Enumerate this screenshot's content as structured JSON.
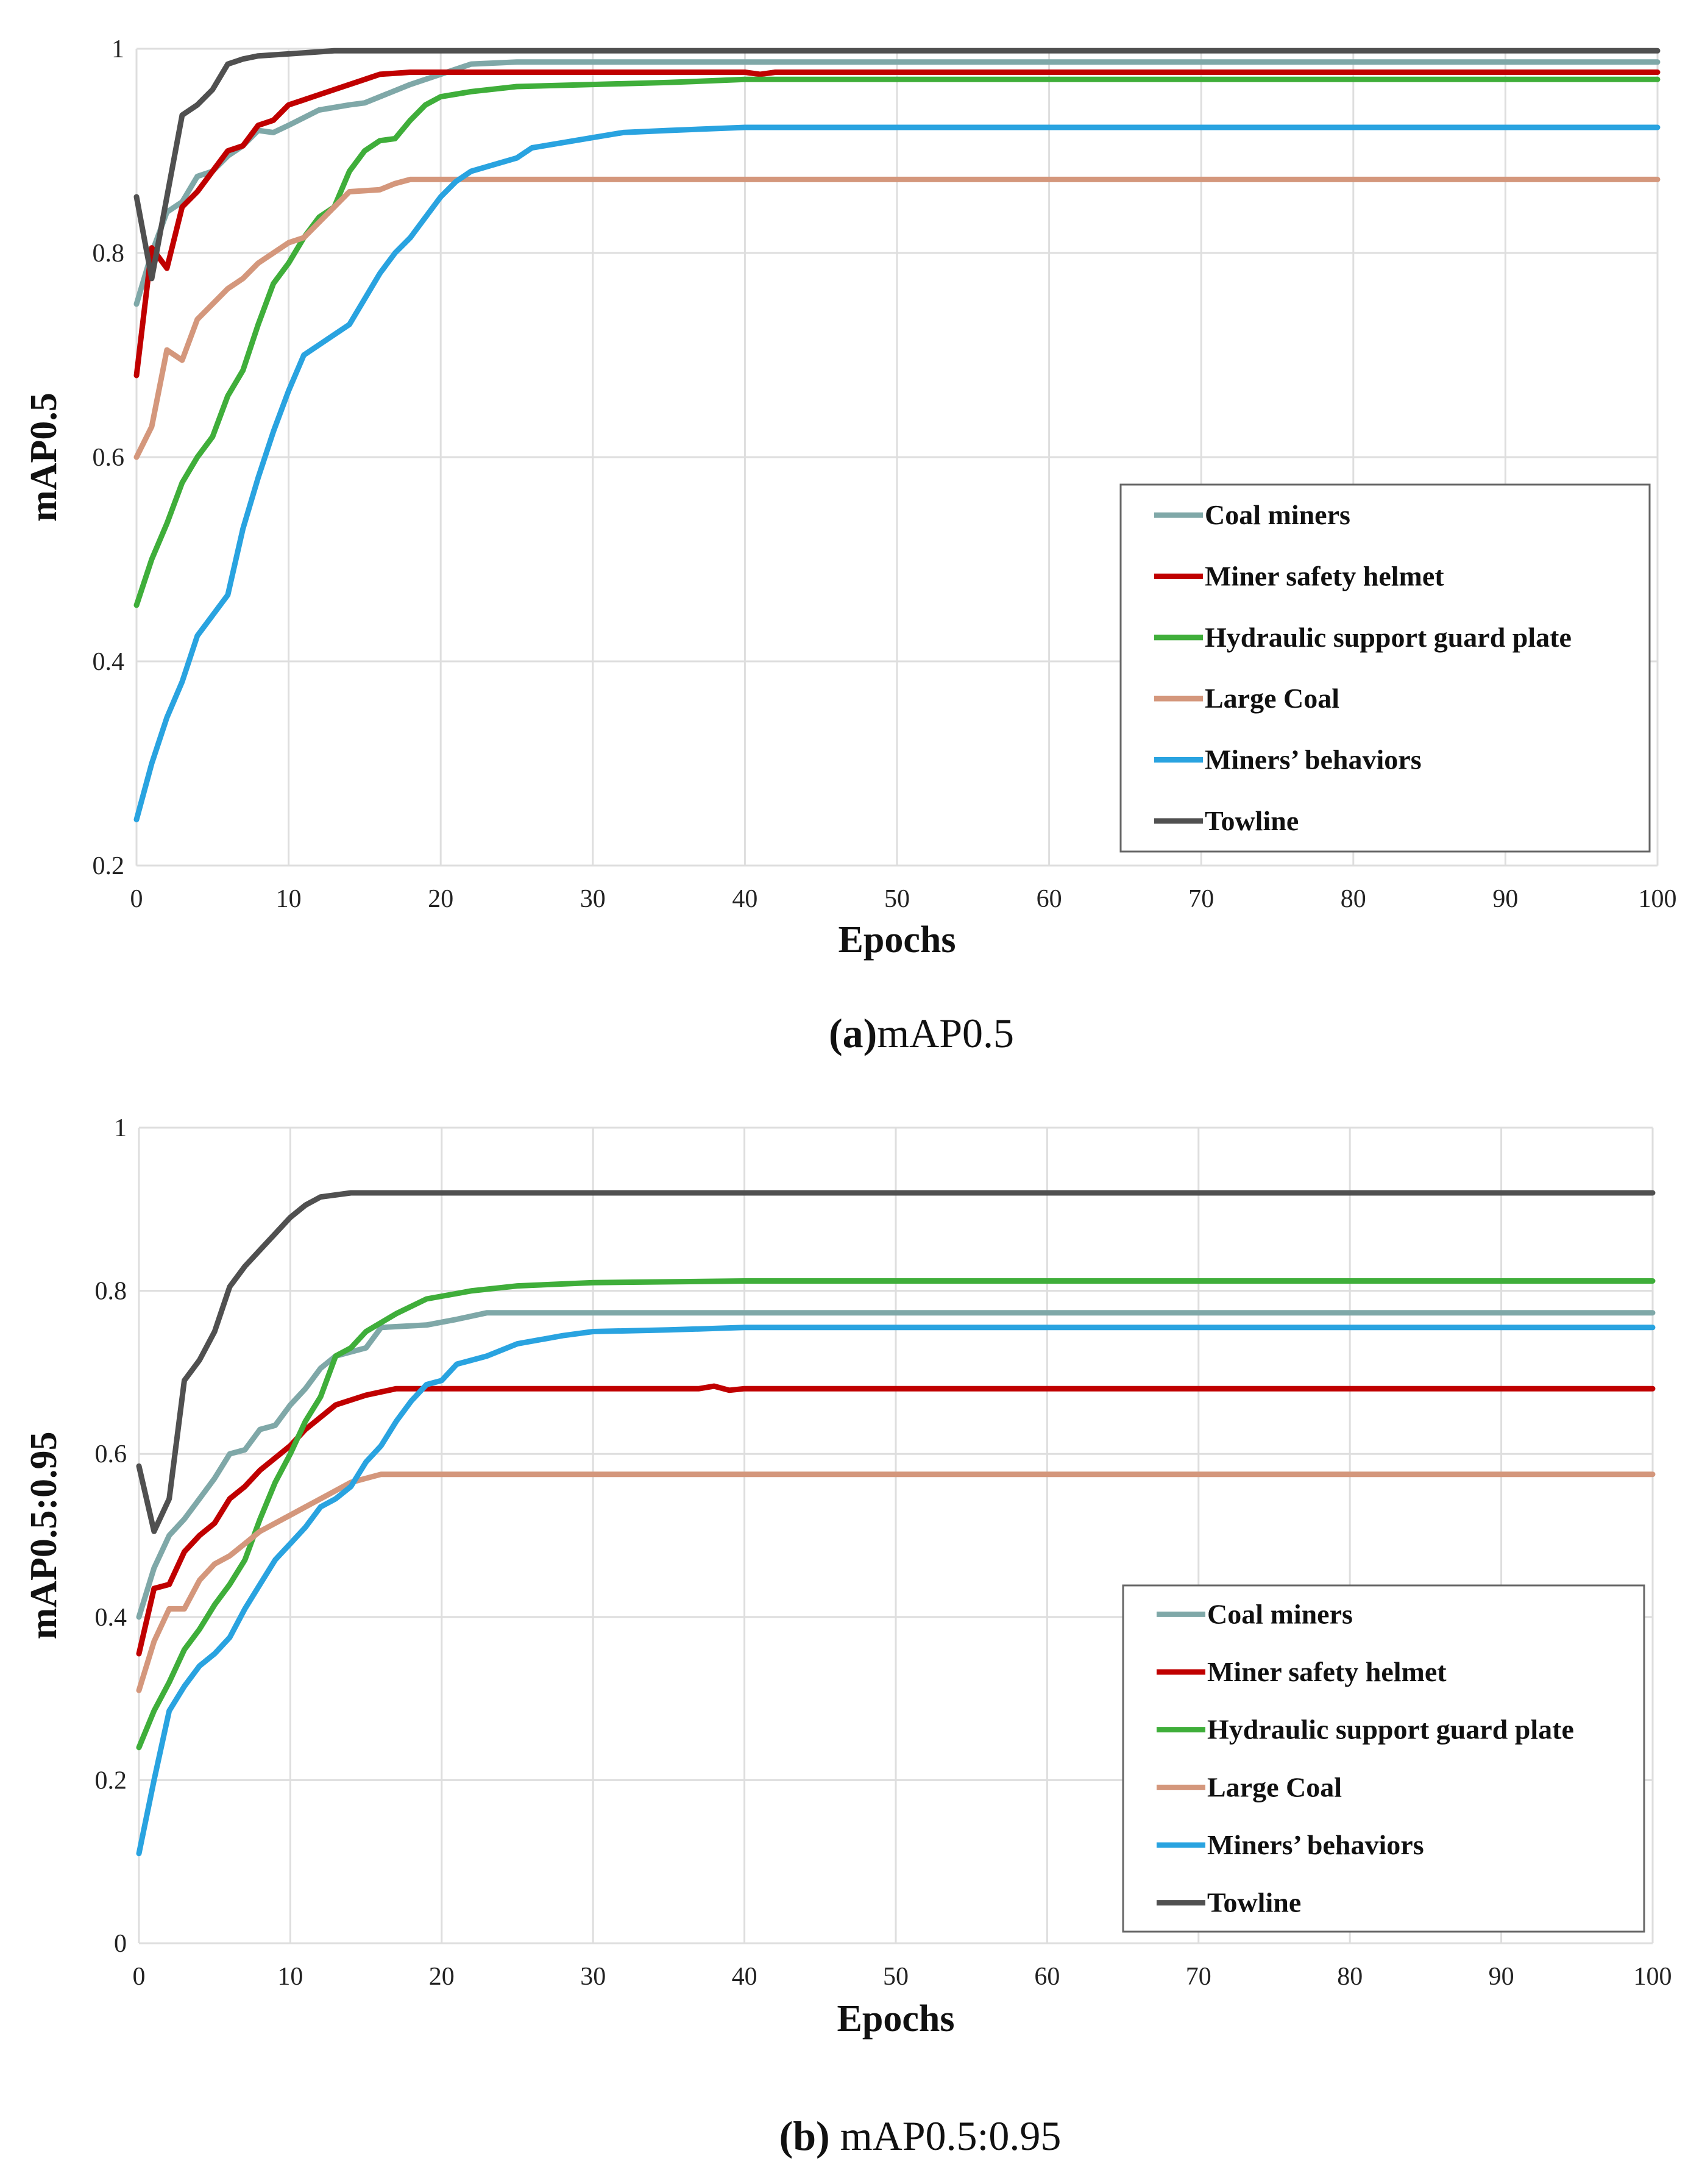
{
  "colors": {
    "Coal miners": "#7fa8a8",
    "Miner safety helmet": "#c00000",
    "Hydraulic support guard plate": "#3fae3a",
    "Large Coal": "#d4977c",
    "Miners’ behaviors": "#29a3e0",
    "Towline": "#505050"
  },
  "chart_data": [
    {
      "type": "line",
      "caption_label": "(a)",
      "caption_text": "mAP0.5",
      "xlabel": "Epochs",
      "ylabel": "mAP0.5",
      "xlim": [
        0,
        100
      ],
      "ylim": [
        0.2,
        1
      ],
      "xticks": [
        "0",
        "10",
        "20",
        "30",
        "40",
        "50",
        "60",
        "70",
        "80",
        "90",
        "100"
      ],
      "yticks": [
        "0.2",
        "0.4",
        "0.6",
        "0.8",
        "1"
      ],
      "grid": true,
      "legend": "bottom-right",
      "series": [
        {
          "name": "Coal miners",
          "points": [
            [
              0,
              0.75
            ],
            [
              1,
              0.8
            ],
            [
              2,
              0.84
            ],
            [
              3,
              0.85
            ],
            [
              4,
              0.875
            ],
            [
              5,
              0.88
            ],
            [
              6,
              0.895
            ],
            [
              7,
              0.905
            ],
            [
              8,
              0.92
            ],
            [
              9,
              0.918
            ],
            [
              10,
              0.925
            ],
            [
              12,
              0.94
            ],
            [
              14,
              0.945
            ],
            [
              15,
              0.947
            ],
            [
              18,
              0.965
            ],
            [
              22,
              0.985
            ],
            [
              25,
              0.987
            ],
            [
              100,
              0.987
            ]
          ]
        },
        {
          "name": "Miner safety helmet",
          "points": [
            [
              0,
              0.68
            ],
            [
              1,
              0.805
            ],
            [
              2,
              0.785
            ],
            [
              3,
              0.845
            ],
            [
              4,
              0.86
            ],
            [
              5,
              0.88
            ],
            [
              6,
              0.9
            ],
            [
              7,
              0.905
            ],
            [
              8,
              0.925
            ],
            [
              9,
              0.93
            ],
            [
              10,
              0.945
            ],
            [
              11,
              0.95
            ],
            [
              13,
              0.96
            ],
            [
              15,
              0.97
            ],
            [
              16,
              0.975
            ],
            [
              18,
              0.977
            ],
            [
              40,
              0.977
            ],
            [
              41,
              0.975
            ],
            [
              42,
              0.977
            ],
            [
              100,
              0.977
            ]
          ]
        },
        {
          "name": "Hydraulic support guard plate",
          "points": [
            [
              0,
              0.455
            ],
            [
              1,
              0.5
            ],
            [
              2,
              0.535
            ],
            [
              3,
              0.575
            ],
            [
              4,
              0.6
            ],
            [
              5,
              0.62
            ],
            [
              6,
              0.66
            ],
            [
              7,
              0.685
            ],
            [
              8,
              0.73
            ],
            [
              9,
              0.77
            ],
            [
              10,
              0.79
            ],
            [
              11,
              0.815
            ],
            [
              12,
              0.835
            ],
            [
              13,
              0.845
            ],
            [
              14,
              0.88
            ],
            [
              15,
              0.9
            ],
            [
              16,
              0.91
            ],
            [
              17,
              0.912
            ],
            [
              18,
              0.93
            ],
            [
              19,
              0.945
            ],
            [
              20,
              0.953
            ],
            [
              22,
              0.958
            ],
            [
              25,
              0.963
            ],
            [
              30,
              0.965
            ],
            [
              35,
              0.967
            ],
            [
              40,
              0.97
            ],
            [
              100,
              0.97
            ]
          ]
        },
        {
          "name": "Large Coal",
          "points": [
            [
              0,
              0.6
            ],
            [
              1,
              0.63
            ],
            [
              2,
              0.705
            ],
            [
              3,
              0.695
            ],
            [
              4,
              0.735
            ],
            [
              5,
              0.75
            ],
            [
              6,
              0.765
            ],
            [
              7,
              0.775
            ],
            [
              8,
              0.79
            ],
            [
              9,
              0.8
            ],
            [
              10,
              0.81
            ],
            [
              11,
              0.815
            ],
            [
              12,
              0.83
            ],
            [
              13,
              0.845
            ],
            [
              14,
              0.86
            ],
            [
              16,
              0.862
            ],
            [
              17,
              0.868
            ],
            [
              18,
              0.872
            ],
            [
              100,
              0.872
            ]
          ]
        },
        {
          "name": "Miners’ behaviors",
          "points": [
            [
              0,
              0.245
            ],
            [
              1,
              0.3
            ],
            [
              2,
              0.345
            ],
            [
              3,
              0.38
            ],
            [
              4,
              0.425
            ],
            [
              5,
              0.445
            ],
            [
              6,
              0.465
            ],
            [
              7,
              0.53
            ],
            [
              8,
              0.58
            ],
            [
              9,
              0.625
            ],
            [
              10,
              0.665
            ],
            [
              11,
              0.7
            ],
            [
              12,
              0.71
            ],
            [
              13,
              0.72
            ],
            [
              14,
              0.73
            ],
            [
              15,
              0.755
            ],
            [
              16,
              0.78
            ],
            [
              17,
              0.8
            ],
            [
              18,
              0.815
            ],
            [
              19,
              0.835
            ],
            [
              20,
              0.855
            ],
            [
              21,
              0.87
            ],
            [
              22,
              0.88
            ],
            [
              25,
              0.893
            ],
            [
              26,
              0.903
            ],
            [
              30,
              0.913
            ],
            [
              32,
              0.918
            ],
            [
              35,
              0.92
            ],
            [
              40,
              0.923
            ],
            [
              100,
              0.923
            ]
          ]
        },
        {
          "name": "Towline",
          "points": [
            [
              0,
              0.855
            ],
            [
              1,
              0.775
            ],
            [
              2,
              0.855
            ],
            [
              3,
              0.935
            ],
            [
              4,
              0.945
            ],
            [
              5,
              0.96
            ],
            [
              6,
              0.985
            ],
            [
              7,
              0.99
            ],
            [
              8,
              0.993
            ],
            [
              10,
              0.995
            ],
            [
              13,
              0.998
            ],
            [
              100,
              0.998
            ]
          ]
        }
      ]
    },
    {
      "type": "line",
      "caption_label": "(b)",
      "caption_text": "mAP0.5:0.95",
      "xlabel": "Epochs",
      "ylabel": "mAP0.5:0.95",
      "xlim": [
        0,
        100
      ],
      "ylim": [
        0,
        1
      ],
      "xticks": [
        "0",
        "10",
        "20",
        "30",
        "40",
        "50",
        "60",
        "70",
        "80",
        "90",
        "100"
      ],
      "yticks": [
        "0",
        "0.2",
        "0.4",
        "0.6",
        "0.8",
        "1"
      ],
      "grid": true,
      "legend": "bottom-right",
      "series": [
        {
          "name": "Coal miners",
          "points": [
            [
              0,
              0.4
            ],
            [
              1,
              0.46
            ],
            [
              2,
              0.5
            ],
            [
              3,
              0.52
            ],
            [
              4,
              0.545
            ],
            [
              5,
              0.57
            ],
            [
              6,
              0.6
            ],
            [
              7,
              0.605
            ],
            [
              8,
              0.63
            ],
            [
              9,
              0.635
            ],
            [
              10,
              0.66
            ],
            [
              11,
              0.68
            ],
            [
              12,
              0.705
            ],
            [
              13,
              0.72
            ],
            [
              14,
              0.725
            ],
            [
              15,
              0.73
            ],
            [
              16,
              0.755
            ],
            [
              19,
              0.758
            ],
            [
              21,
              0.765
            ],
            [
              23,
              0.773
            ],
            [
              100,
              0.773
            ]
          ]
        },
        {
          "name": "Miner safety helmet",
          "points": [
            [
              0,
              0.355
            ],
            [
              1,
              0.435
            ],
            [
              2,
              0.44
            ],
            [
              3,
              0.48
            ],
            [
              4,
              0.5
            ],
            [
              5,
              0.515
            ],
            [
              6,
              0.545
            ],
            [
              7,
              0.56
            ],
            [
              8,
              0.58
            ],
            [
              9,
              0.595
            ],
            [
              10,
              0.61
            ],
            [
              11,
              0.63
            ],
            [
              12,
              0.645
            ],
            [
              13,
              0.66
            ],
            [
              15,
              0.672
            ],
            [
              17,
              0.68
            ],
            [
              37,
              0.68
            ],
            [
              38,
              0.683
            ],
            [
              39,
              0.678
            ],
            [
              40,
              0.68
            ],
            [
              100,
              0.68
            ]
          ]
        },
        {
          "name": "Hydraulic support guard plate",
          "points": [
            [
              0,
              0.24
            ],
            [
              1,
              0.285
            ],
            [
              2,
              0.32
            ],
            [
              3,
              0.36
            ],
            [
              4,
              0.385
            ],
            [
              5,
              0.415
            ],
            [
              6,
              0.44
            ],
            [
              7,
              0.47
            ],
            [
              8,
              0.52
            ],
            [
              9,
              0.565
            ],
            [
              10,
              0.6
            ],
            [
              11,
              0.64
            ],
            [
              12,
              0.67
            ],
            [
              13,
              0.72
            ],
            [
              14,
              0.73
            ],
            [
              15,
              0.75
            ],
            [
              17,
              0.772
            ],
            [
              19,
              0.79
            ],
            [
              22,
              0.8
            ],
            [
              25,
              0.806
            ],
            [
              30,
              0.81
            ],
            [
              40,
              0.812
            ],
            [
              100,
              0.812
            ]
          ]
        },
        {
          "name": "Large Coal",
          "points": [
            [
              0,
              0.31
            ],
            [
              1,
              0.37
            ],
            [
              2,
              0.41
            ],
            [
              3,
              0.41
            ],
            [
              4,
              0.445
            ],
            [
              5,
              0.465
            ],
            [
              6,
              0.475
            ],
            [
              7,
              0.49
            ],
            [
              8,
              0.505
            ],
            [
              10,
              0.525
            ],
            [
              12,
              0.545
            ],
            [
              13,
              0.555
            ],
            [
              14,
              0.565
            ],
            [
              15,
              0.57
            ],
            [
              16,
              0.575
            ],
            [
              100,
              0.575
            ]
          ]
        },
        {
          "name": "Miners’ behaviors",
          "points": [
            [
              0,
              0.11
            ],
            [
              1,
              0.2
            ],
            [
              2,
              0.285
            ],
            [
              3,
              0.315
            ],
            [
              4,
              0.34
            ],
            [
              5,
              0.355
            ],
            [
              6,
              0.375
            ],
            [
              7,
              0.41
            ],
            [
              8,
              0.44
            ],
            [
              9,
              0.47
            ],
            [
              10,
              0.49
            ],
            [
              11,
              0.51
            ],
            [
              12,
              0.535
            ],
            [
              13,
              0.545
            ],
            [
              14,
              0.56
            ],
            [
              15,
              0.59
            ],
            [
              16,
              0.61
            ],
            [
              17,
              0.64
            ],
            [
              18,
              0.665
            ],
            [
              19,
              0.685
            ],
            [
              20,
              0.69
            ],
            [
              21,
              0.71
            ],
            [
              23,
              0.72
            ],
            [
              25,
              0.735
            ],
            [
              28,
              0.745
            ],
            [
              30,
              0.75
            ],
            [
              35,
              0.752
            ],
            [
              40,
              0.755
            ],
            [
              100,
              0.755
            ]
          ]
        },
        {
          "name": "Towline",
          "points": [
            [
              0,
              0.585
            ],
            [
              1,
              0.505
            ],
            [
              2,
              0.545
            ],
            [
              3,
              0.69
            ],
            [
              4,
              0.715
            ],
            [
              5,
              0.75
            ],
            [
              6,
              0.805
            ],
            [
              7,
              0.83
            ],
            [
              8,
              0.85
            ],
            [
              9,
              0.87
            ],
            [
              10,
              0.89
            ],
            [
              11,
              0.905
            ],
            [
              12,
              0.915
            ],
            [
              14,
              0.92
            ],
            [
              100,
              0.92
            ]
          ]
        }
      ]
    }
  ]
}
